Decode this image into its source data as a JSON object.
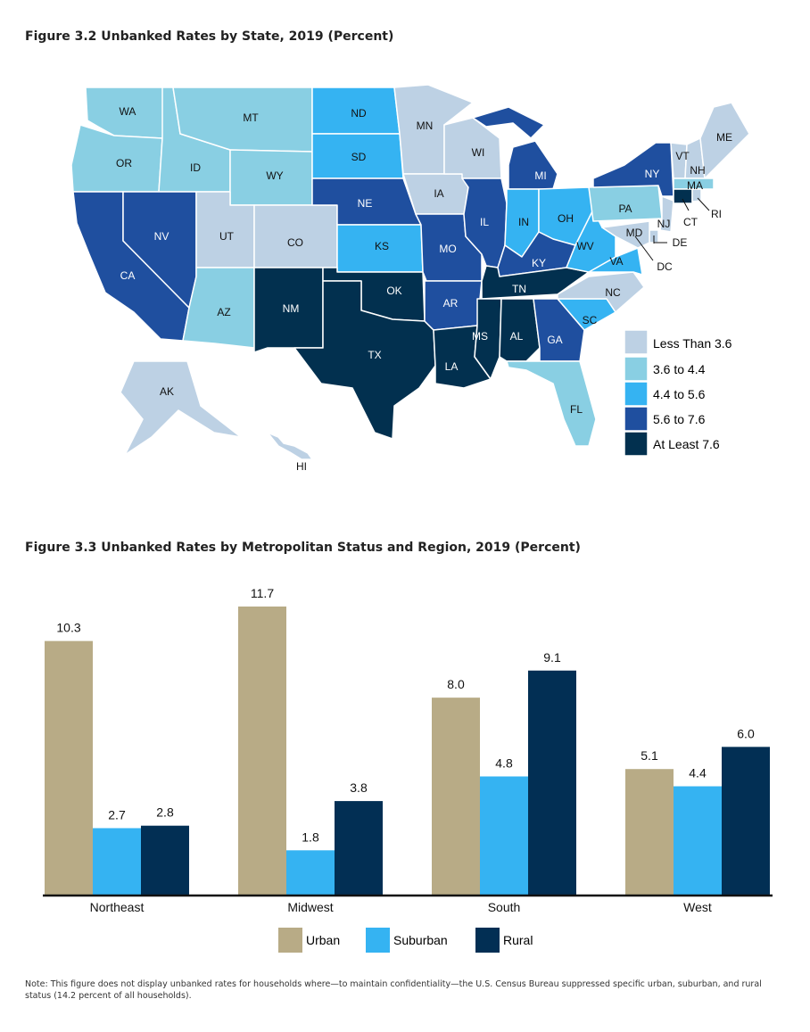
{
  "map": {
    "title": "Figure 3.2 Unbanked Rates by State, 2019 (Percent)",
    "colors": {
      "c1": "#bdd1e4",
      "c2": "#89cfe3",
      "c3": "#35b3f2",
      "c4": "#1f4f9f",
      "c5": "#02304f"
    },
    "legend": [
      {
        "label": "Less Than 3.6",
        "color": "#bdd1e4"
      },
      {
        "label": "3.6 to 4.4",
        "color": "#89cfe3"
      },
      {
        "label": "4.4 to 5.6",
        "color": "#35b3f2"
      },
      {
        "label": "5.6 to 7.6",
        "color": "#1f4f9f"
      },
      {
        "label": "At Least 7.6",
        "color": "#02304f"
      }
    ],
    "states": [
      "WA",
      "OR",
      "CA",
      "ID",
      "NV",
      "MT",
      "WY",
      "UT",
      "AZ",
      "CO",
      "NM",
      "ND",
      "SD",
      "NE",
      "KS",
      "OK",
      "TX",
      "MN",
      "IA",
      "MO",
      "AR",
      "LA",
      "WI",
      "IL",
      "MI",
      "IN",
      "OH",
      "KY",
      "TN",
      "MS",
      "AL",
      "GA",
      "FL",
      "SC",
      "NC",
      "VA",
      "WV",
      "PA",
      "NY",
      "VT",
      "NH",
      "ME",
      "MA",
      "CT",
      "RI",
      "NJ",
      "DE",
      "MD",
      "DC",
      "AK",
      "HI"
    ]
  },
  "chart": {
    "title": "Figure 3.3 Unbanked Rates by Metropolitan Status and Region, 2019 (Percent)",
    "note": "Note: This figure does not display unbanked rates for households where—to maintain confidentiality—the U.S. Census Bureau suppressed specific urban, suburban, and rural status (14.2 percent of all households).",
    "legend": [
      {
        "label": "Urban",
        "color": "#b8ab86"
      },
      {
        "label": "Suburban",
        "color": "#35b3f2"
      },
      {
        "label": "Rural",
        "color": "#022f54"
      }
    ]
  },
  "chart_data": {
    "type": "bar",
    "title": "Figure 3.3 Unbanked Rates by Metropolitan Status and Region, 2019 (Percent)",
    "categories": [
      "Northeast",
      "Midwest",
      "South",
      "West"
    ],
    "series": [
      {
        "name": "Urban",
        "values": [
          10.3,
          11.7,
          8.0,
          5.1
        ]
      },
      {
        "name": "Suburban",
        "values": [
          2.7,
          1.8,
          4.8,
          4.4
        ]
      },
      {
        "name": "Rural",
        "values": [
          2.8,
          3.8,
          9.1,
          6.0
        ]
      }
    ],
    "value_labels": [
      [
        "10.3",
        "11.7",
        "8.0",
        "5.1"
      ],
      [
        "2.7",
        "1.8",
        "4.8",
        "4.4"
      ],
      [
        "2.8",
        "3.8",
        "9.1",
        "6.0"
      ]
    ],
    "ylim": [
      0,
      11.7
    ],
    "xlabel": "",
    "ylabel": "",
    "legend_position": "bottom"
  }
}
